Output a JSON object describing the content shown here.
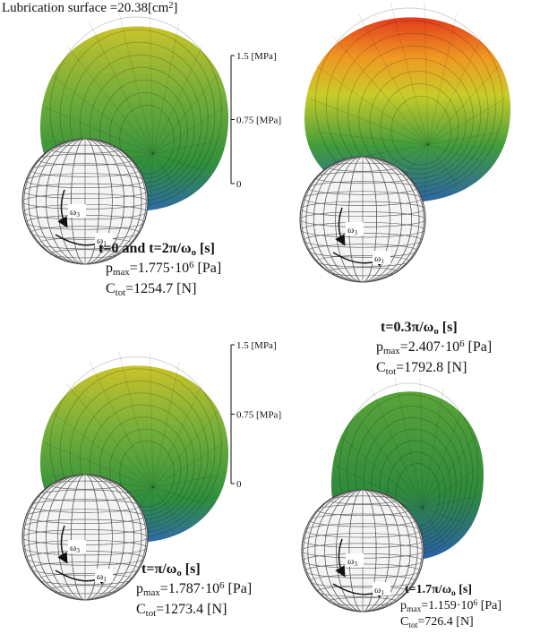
{
  "title": [
    {
      "t": "Lubrication surface =20.38[cm"
    },
    {
      "sup": "2"
    },
    {
      "t": "]"
    }
  ],
  "scales": [
    {
      "top": "1.5 [MPa]",
      "mid": "0.75 [MPa]",
      "bottom": "0"
    },
    {
      "top": "1.5 [MPa]",
      "mid": "0.75 [MPa]",
      "bottom": "0"
    }
  ],
  "panels": [
    {
      "time": [
        {
          "t": "t=0   and   t=2π/ω"
        },
        {
          "sub": "o"
        },
        {
          "t": " [s]"
        }
      ],
      "pmax": [
        {
          "t": "p"
        },
        {
          "sub": "max"
        },
        {
          "t": "=1.775·10"
        },
        {
          "sup": "6"
        },
        {
          "t": " [Pa]"
        }
      ],
      "ctot": [
        {
          "t": "C"
        },
        {
          "sub": "tot"
        },
        {
          "t": "=1254.7 [N]"
        }
      ],
      "omega3": [
        {
          "t": "ω"
        },
        {
          "sub": "3"
        }
      ],
      "omega1": [
        {
          "t": "ω"
        },
        {
          "sub": "1"
        }
      ]
    },
    {
      "time": [
        {
          "t": "t=0.3π/ω"
        },
        {
          "sub": "o"
        },
        {
          "t": " [s]"
        }
      ],
      "pmax": [
        {
          "t": "p"
        },
        {
          "sub": "max"
        },
        {
          "t": "=2.407·10"
        },
        {
          "sup": "6"
        },
        {
          "t": " [Pa]"
        }
      ],
      "ctot": [
        {
          "t": "C"
        },
        {
          "sub": "tot"
        },
        {
          "t": "=1792.8 [N]"
        }
      ],
      "omega3": [
        {
          "t": "ω"
        },
        {
          "sub": "3"
        }
      ],
      "omega1": [
        {
          "t": "ω"
        },
        {
          "sub": "1"
        }
      ]
    },
    {
      "time": [
        {
          "t": "t=π/ω"
        },
        {
          "sub": "o"
        },
        {
          "t": " [s]"
        }
      ],
      "pmax": [
        {
          "t": "p"
        },
        {
          "sub": "max"
        },
        {
          "t": "=1.787·10"
        },
        {
          "sup": "6"
        },
        {
          "t": " [Pa]"
        }
      ],
      "ctot": [
        {
          "t": "C"
        },
        {
          "sub": "tot"
        },
        {
          "t": "=1273.4 [N]"
        }
      ],
      "omega3": [
        {
          "t": "ω"
        },
        {
          "sub": "3"
        }
      ],
      "omega1": [
        {
          "t": "ω"
        },
        {
          "sub": "1"
        }
      ]
    },
    {
      "time": [
        {
          "t": "t=1.7π/ω"
        },
        {
          "sub": "o"
        },
        {
          "t": " [s]"
        }
      ],
      "pmax": [
        {
          "t": "p"
        },
        {
          "sub": "max"
        },
        {
          "t": "=1.159·10"
        },
        {
          "sup": "6"
        },
        {
          "t": " [Pa]"
        }
      ],
      "ctot": [
        {
          "t": "C"
        },
        {
          "sub": "tot"
        },
        {
          "t": "=726.4 [N]"
        }
      ],
      "omega3": [
        {
          "t": "ω"
        },
        {
          "sub": "3"
        }
      ],
      "omega1": [
        {
          "t": "ω"
        },
        {
          "sub": "1"
        }
      ]
    }
  ]
}
